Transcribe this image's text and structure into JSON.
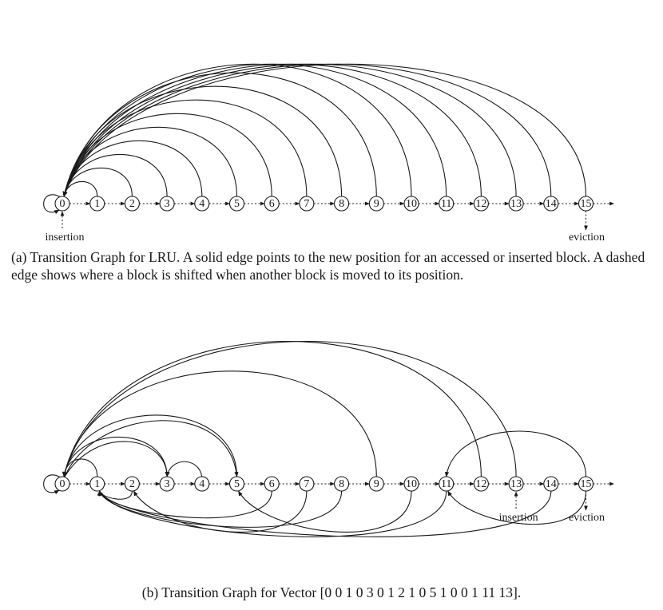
{
  "graph_a": {
    "nodes": [
      "0",
      "1",
      "2",
      "3",
      "4",
      "5",
      "6",
      "7",
      "8",
      "9",
      "10",
      "11",
      "12",
      "13",
      "14",
      "15"
    ],
    "insertion_label": "insertion",
    "insertion_node": 0,
    "eviction_label": "eviction",
    "eviction_node": 15,
    "self_loop_node": 0,
    "solid_edges": [
      [
        1,
        0
      ],
      [
        2,
        0
      ],
      [
        3,
        0
      ],
      [
        4,
        0
      ],
      [
        5,
        0
      ],
      [
        6,
        0
      ],
      [
        7,
        0
      ],
      [
        8,
        0
      ],
      [
        9,
        0
      ],
      [
        10,
        0
      ],
      [
        11,
        0
      ],
      [
        12,
        0
      ],
      [
        13,
        0
      ],
      [
        14,
        0
      ],
      [
        15,
        0
      ]
    ],
    "caption": "(a) Transition Graph for LRU. A solid edge points to the new position for an accessed or inserted block. A dashed edge shows where a block is shifted when another block is moved to its position."
  },
  "graph_b": {
    "nodes": [
      "0",
      "1",
      "2",
      "3",
      "4",
      "5",
      "6",
      "7",
      "8",
      "9",
      "10",
      "11",
      "12",
      "13",
      "14",
      "15"
    ],
    "insertion_label": "insertion",
    "insertion_node": 13,
    "eviction_label": "eviction",
    "eviction_node": 15,
    "self_loop_node": 0,
    "vector": [
      0,
      0,
      1,
      0,
      3,
      0,
      1,
      2,
      1,
      0,
      5,
      1,
      0,
      0,
      1,
      11,
      13
    ],
    "caption": "(b) Transition Graph for Vector  [0 0 1 0 3 0 1 2 1 0 5 1 0 0 1 11 13]."
  }
}
